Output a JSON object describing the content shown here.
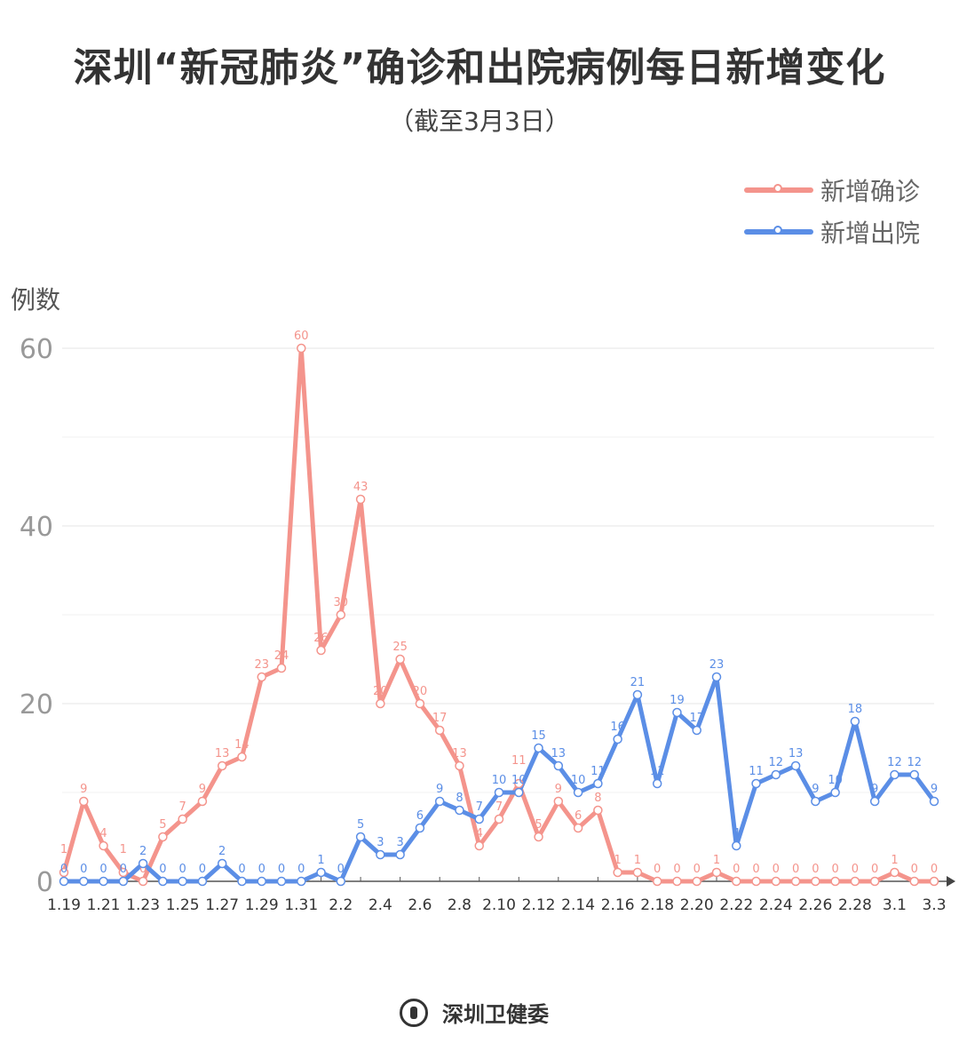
{
  "chart_data": {
    "type": "line",
    "title": "深圳“新冠肺炎”确诊和出院病例每日新增变化",
    "subtitle": "（截至3月3日）",
    "ylabel": "例数",
    "xlabel": "",
    "ylim": [
      0,
      60
    ],
    "yticks": [
      0,
      20,
      40,
      60
    ],
    "grid": true,
    "legend_position": "top-right",
    "x": [
      "1.19",
      "1.20",
      "1.21",
      "1.22",
      "1.23",
      "1.24",
      "1.25",
      "1.26",
      "1.27",
      "1.28",
      "1.29",
      "1.30",
      "1.31",
      "2.1",
      "2.2",
      "2.3",
      "2.4",
      "2.5",
      "2.6",
      "2.7",
      "2.8",
      "2.9",
      "2.10",
      "2.11",
      "2.12",
      "2.13",
      "2.14",
      "2.15",
      "2.16",
      "2.17",
      "2.18",
      "2.19",
      "2.20",
      "2.21",
      "2.22",
      "2.23",
      "2.24",
      "2.25",
      "2.26",
      "2.27",
      "2.28",
      "2.29",
      "3.1",
      "3.2",
      "3.3"
    ],
    "xtick_labels": [
      "1.19",
      "1.21",
      "1.23",
      "1.25",
      "1.27",
      "1.29",
      "1.31",
      "2.2",
      "2.4",
      "2.6",
      "2.8",
      "2.10",
      "2.12",
      "2.14",
      "2.16",
      "2.18",
      "2.20",
      "2.22",
      "2.24",
      "2.26",
      "2.28",
      "3.1",
      "3.3"
    ],
    "series": [
      {
        "name": "新增确诊",
        "color": "#f4948c",
        "values": [
          1,
          9,
          4,
          1,
          0,
          5,
          7,
          9,
          13,
          14,
          23,
          24,
          60,
          26,
          30,
          43,
          20,
          25,
          20,
          17,
          13,
          4,
          7,
          11,
          5,
          9,
          6,
          8,
          1,
          1,
          0,
          0,
          0,
          1,
          0,
          0,
          0,
          0,
          0,
          0,
          0,
          0,
          1,
          0,
          0
        ]
      },
      {
        "name": "新增出院",
        "color": "#5b8ee6",
        "values": [
          0,
          0,
          0,
          0,
          2,
          0,
          0,
          0,
          2,
          0,
          0,
          0,
          0,
          1,
          0,
          5,
          3,
          3,
          6,
          9,
          8,
          7,
          10,
          10,
          15,
          13,
          10,
          11,
          16,
          21,
          11,
          19,
          17,
          23,
          4,
          11,
          12,
          13,
          9,
          10,
          18,
          9,
          12,
          12,
          9
        ]
      }
    ]
  },
  "footer": {
    "org": "深圳卫健委"
  }
}
